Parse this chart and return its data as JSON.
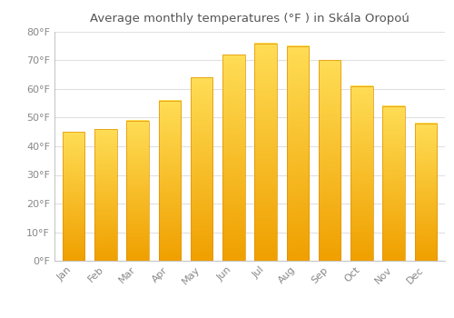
{
  "categories": [
    "Jan",
    "Feb",
    "Mar",
    "Apr",
    "May",
    "Jun",
    "Jul",
    "Aug",
    "Sep",
    "Oct",
    "Nov",
    "Dec"
  ],
  "values": [
    45,
    46,
    49,
    56,
    64,
    72,
    76,
    75,
    70,
    61,
    54,
    48
  ],
  "bar_color_bottom": "#F5A000",
  "bar_color_top": "#FFDD44",
  "title": "Average monthly temperatures (°F ) in Skála Oropoú",
  "ylim": [
    0,
    80
  ],
  "yticks": [
    0,
    10,
    20,
    30,
    40,
    50,
    60,
    70,
    80
  ],
  "ytick_labels": [
    "0°F",
    "10°F",
    "20°F",
    "30°F",
    "40°F",
    "50°F",
    "60°F",
    "70°F",
    "80°F"
  ],
  "background_color": "#ffffff",
  "grid_color": "#e0e0e0",
  "title_fontsize": 9.5,
  "tick_fontsize": 8,
  "tick_color": "#888888",
  "title_color": "#555555"
}
